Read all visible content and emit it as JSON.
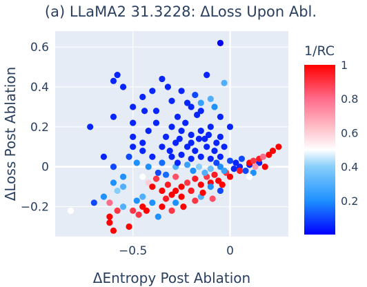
{
  "chart_data": {
    "type": "scatter",
    "title": "(a) LLaMA2 31.3228: ΔLoss Upon Abl.",
    "xlabel": "ΔEntropy Post Ablation",
    "ylabel": "ΔLoss Post Ablation",
    "xlim": [
      -0.9,
      0.3
    ],
    "ylim": [
      -0.35,
      0.68
    ],
    "x_ticks": [
      -0.5,
      0
    ],
    "x_tick_labels": [
      "−0.5",
      "0"
    ],
    "y_ticks": [
      -0.2,
      0,
      0.2,
      0.4,
      0.6
    ],
    "y_tick_labels": [
      "−0.2",
      "0",
      "0.2",
      "0.4",
      "0.6"
    ],
    "grid": true,
    "background_color": "#e5ecf6",
    "colorbar": {
      "title": "1/RC",
      "range": [
        0,
        1
      ],
      "ticks": [
        0.2,
        0.4,
        0.6,
        0.8,
        1
      ],
      "tick_labels": [
        "0.2",
        "0.4",
        "0.6",
        "0.8",
        "1"
      ],
      "colorscale": [
        [
          0.0,
          "#0000ff"
        ],
        [
          0.2,
          "#1e90ff"
        ],
        [
          0.4,
          "#87cefa"
        ],
        [
          0.5,
          "#ffffff"
        ],
        [
          0.65,
          "#ffb6c1"
        ],
        [
          0.8,
          "#ff6b8a"
        ],
        [
          1.0,
          "#ff0000"
        ]
      ]
    },
    "points": [
      [
        -0.05,
        0.62,
        0.0
      ],
      [
        -0.58,
        0.46,
        0.05
      ],
      [
        -0.35,
        0.44,
        0.05
      ],
      [
        -0.12,
        0.46,
        0.05
      ],
      [
        -0.03,
        0.42,
        0.3
      ],
      [
        -0.6,
        0.43,
        0.05
      ],
      [
        -0.55,
        0.4,
        0.05
      ],
      [
        -0.72,
        0.2,
        0.05
      ],
      [
        -0.45,
        0.35,
        0.05
      ],
      [
        -0.25,
        0.38,
        0.05
      ],
      [
        -0.18,
        0.36,
        0.1
      ],
      [
        -0.1,
        0.34,
        0.3
      ],
      [
        -0.08,
        0.3,
        0.2
      ],
      [
        -0.3,
        0.33,
        0.05
      ],
      [
        -0.38,
        0.28,
        0.05
      ],
      [
        -0.5,
        0.3,
        0.05
      ],
      [
        -0.15,
        0.32,
        0.25
      ],
      [
        -0.45,
        0.12,
        0.05
      ],
      [
        -0.38,
        0.22,
        0.05
      ],
      [
        -0.3,
        0.2,
        0.05
      ],
      [
        -0.25,
        0.18,
        0.05
      ],
      [
        -0.2,
        0.16,
        0.05
      ],
      [
        -0.15,
        0.18,
        0.05
      ],
      [
        -0.1,
        0.2,
        0.05
      ],
      [
        -0.05,
        0.15,
        0.05
      ],
      [
        -0.35,
        0.1,
        0.05
      ],
      [
        -0.28,
        0.12,
        0.05
      ],
      [
        -0.22,
        0.1,
        0.05
      ],
      [
        -0.18,
        0.08,
        0.05
      ],
      [
        -0.12,
        0.1,
        0.05
      ],
      [
        -0.08,
        0.08,
        0.05
      ],
      [
        -0.3,
        0.05,
        0.05
      ],
      [
        -0.25,
        0.06,
        0.05
      ],
      [
        -0.2,
        0.04,
        0.05
      ],
      [
        -0.15,
        0.05,
        0.05
      ],
      [
        -0.1,
        0.04,
        0.05
      ],
      [
        -0.05,
        0.05,
        0.05
      ],
      [
        0.0,
        0.03,
        0.1
      ],
      [
        -0.4,
        0.05,
        0.05
      ],
      [
        -0.45,
        0.08,
        0.05
      ],
      [
        -0.5,
        0.1,
        0.05
      ],
      [
        -0.52,
        0.05,
        0.1
      ],
      [
        -0.48,
        0.02,
        0.2
      ],
      [
        -0.42,
        0.0,
        0.2
      ],
      [
        -0.35,
        0.02,
        0.15
      ],
      [
        -0.28,
        0.0,
        0.3
      ],
      [
        -0.22,
        0.01,
        0.25
      ],
      [
        -0.16,
        0.0,
        0.4
      ],
      [
        -0.1,
        -0.01,
        0.35
      ],
      [
        -0.05,
        0.0,
        0.2
      ],
      [
        0.02,
        -0.01,
        0.05
      ],
      [
        0.05,
        0.0,
        0.05
      ],
      [
        0.08,
        -0.02,
        0.1
      ],
      [
        0.1,
        0.01,
        0.05
      ],
      [
        0.12,
        -0.03,
        0.2
      ],
      [
        0.15,
        0.02,
        0.05
      ],
      [
        -0.6,
        -0.08,
        0.2
      ],
      [
        -0.55,
        -0.1,
        0.3
      ],
      [
        -0.65,
        -0.15,
        0.2
      ],
      [
        -0.62,
        -0.18,
        0.8
      ],
      [
        -0.58,
        -0.12,
        0.4
      ],
      [
        -0.45,
        -0.05,
        0.5
      ],
      [
        -0.42,
        -0.08,
        0.6
      ],
      [
        -0.4,
        -0.1,
        1.0
      ],
      [
        -0.38,
        -0.06,
        0.9
      ],
      [
        -0.35,
        -0.12,
        1.0
      ],
      [
        -0.32,
        -0.09,
        0.95
      ],
      [
        -0.3,
        -0.14,
        1.0
      ],
      [
        -0.28,
        -0.05,
        0.85
      ],
      [
        -0.25,
        -0.1,
        1.0
      ],
      [
        -0.22,
        -0.08,
        0.9
      ],
      [
        -0.2,
        -0.12,
        1.0
      ],
      [
        -0.18,
        -0.06,
        0.95
      ],
      [
        -0.15,
        -0.09,
        1.0
      ],
      [
        -0.12,
        -0.05,
        0.9
      ],
      [
        -0.1,
        -0.08,
        1.0
      ],
      [
        -0.08,
        -0.04,
        0.95
      ],
      [
        -0.06,
        -0.07,
        1.0
      ],
      [
        -0.02,
        -0.03,
        0.9
      ],
      [
        0.0,
        -0.05,
        1.0
      ],
      [
        0.05,
        -0.02,
        0.95
      ],
      [
        0.1,
        0.02,
        1.0
      ],
      [
        0.15,
        0.04,
        0.95
      ],
      [
        0.2,
        0.06,
        1.0
      ],
      [
        0.22,
        0.08,
        1.0
      ],
      [
        0.25,
        0.1,
        1.0
      ],
      [
        0.18,
        0.0,
        1.0
      ],
      [
        0.12,
        0.03,
        0.9
      ],
      [
        -0.62,
        -0.25,
        1.0
      ],
      [
        -0.62,
        -0.28,
        1.0
      ],
      [
        -0.6,
        -0.32,
        1.0
      ],
      [
        -0.5,
        -0.22,
        0.9
      ],
      [
        -0.45,
        -0.15,
        0.3
      ],
      [
        -0.4,
        -0.18,
        0.2
      ],
      [
        -0.35,
        -0.2,
        1.0
      ],
      [
        -0.3,
        -0.22,
        0.9
      ],
      [
        -0.28,
        -0.18,
        0.2
      ],
      [
        -0.82,
        -0.22,
        0.5
      ],
      [
        -0.7,
        -0.18,
        0.1
      ],
      [
        -0.55,
        -0.2,
        0.3
      ],
      [
        -0.48,
        -0.17,
        0.2
      ],
      [
        -0.45,
        -0.2,
        1.0
      ],
      [
        -0.25,
        -0.15,
        1.0
      ],
      [
        -0.2,
        -0.12,
        0.95
      ],
      [
        -0.15,
        -0.15,
        0.3
      ],
      [
        -0.1,
        -0.1,
        0.2
      ],
      [
        -0.05,
        -0.12,
        0.1
      ],
      [
        -0.65,
        0.05,
        0.05
      ],
      [
        -0.6,
        0.0,
        0.1
      ],
      [
        -0.55,
        -0.05,
        0.2
      ],
      [
        -0.5,
        0.15,
        0.05
      ],
      [
        -0.42,
        0.18,
        0.05
      ],
      [
        -0.33,
        0.15,
        0.05
      ],
      [
        -0.27,
        0.25,
        0.05
      ],
      [
        -0.23,
        0.22,
        0.05
      ],
      [
        -0.17,
        0.26,
        0.05
      ],
      [
        -0.13,
        0.14,
        0.05
      ],
      [
        -0.07,
        0.12,
        0.05
      ],
      [
        -0.03,
        0.1,
        0.05
      ],
      [
        -0.4,
        0.38,
        0.05
      ],
      [
        -0.32,
        0.4,
        0.05
      ],
      [
        -0.22,
        0.32,
        0.05
      ],
      [
        -0.6,
        0.25,
        0.05
      ],
      [
        -0.5,
        0.22,
        0.05
      ],
      [
        -0.44,
        0.28,
        0.05
      ],
      [
        -0.2,
        0.3,
        0.05
      ],
      [
        -0.15,
        0.28,
        0.05
      ],
      [
        -0.05,
        0.25,
        0.05
      ],
      [
        0.0,
        0.2,
        0.05
      ],
      [
        -0.26,
        0.14,
        0.05
      ],
      [
        -0.2,
        0.12,
        0.05
      ],
      [
        -0.16,
        0.14,
        0.05
      ],
      [
        -0.11,
        0.16,
        0.05
      ],
      [
        -0.31,
        0.08,
        0.05
      ],
      [
        -0.27,
        0.02,
        0.05
      ],
      [
        -0.37,
        -0.03,
        0.1
      ],
      [
        -0.33,
        -0.04,
        0.15
      ],
      [
        -0.19,
        -0.02,
        0.2
      ],
      [
        -0.13,
        -0.03,
        0.3
      ],
      [
        -0.07,
        0.02,
        0.1
      ],
      [
        -0.03,
        -0.02,
        0.25
      ],
      [
        0.03,
        0.02,
        0.05
      ],
      [
        0.06,
        0.04,
        0.1
      ],
      [
        0.1,
        -0.05,
        0.5
      ],
      [
        0.13,
        0.0,
        0.7
      ],
      [
        0.17,
        0.05,
        0.8
      ],
      [
        -0.58,
        -0.22,
        0.9
      ],
      [
        -0.52,
        -0.3,
        1.0
      ],
      [
        -0.47,
        -0.24,
        0.9
      ],
      [
        -0.43,
        -0.22,
        1.0
      ],
      [
        -0.37,
        -0.25,
        0.2
      ],
      [
        -0.33,
        -0.16,
        0.95
      ],
      [
        -0.28,
        -0.12,
        1.0
      ],
      [
        -0.24,
        -0.2,
        1.0
      ],
      [
        -0.18,
        -0.17,
        0.9
      ],
      [
        -0.14,
        -0.13,
        1.0
      ],
      [
        -0.09,
        -0.16,
        0.85
      ],
      [
        -0.04,
        -0.09,
        1.0
      ]
    ]
  }
}
